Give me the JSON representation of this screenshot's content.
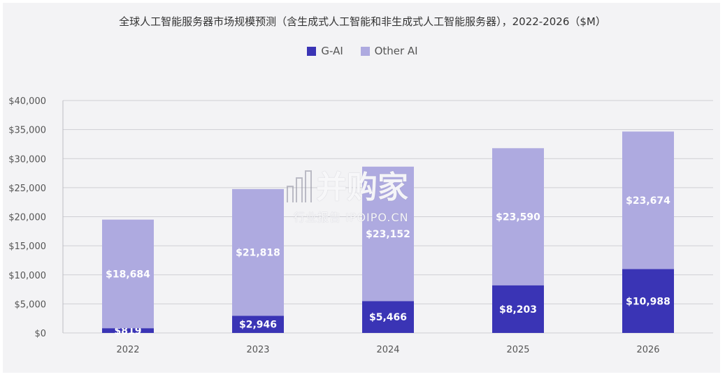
{
  "chart_data": {
    "type": "bar",
    "stacked": true,
    "title": "全球人工智能服务器市场规模预测（含生成式人工智能和非生成式人工智能服务器），2022-2026（$M）",
    "categories": [
      "2022",
      "2023",
      "2024",
      "2025",
      "2026"
    ],
    "series": [
      {
        "name": "G-AI",
        "color": "#3a34b5",
        "values": [
          819,
          2946,
          5466,
          8203,
          10988
        ],
        "labels": [
          "$819",
          "$2,946",
          "$5,466",
          "$8,203",
          "$10,988"
        ]
      },
      {
        "name": "Other AI",
        "color": "#aeaae0",
        "values": [
          18684,
          21818,
          23152,
          23590,
          23674
        ],
        "labels": [
          "$18,684",
          "$21,818",
          "$23,152",
          "$23,590",
          "$23,674"
        ]
      }
    ],
    "ylim": [
      0,
      40000
    ],
    "yticks": [
      0,
      5000,
      10000,
      15000,
      20000,
      25000,
      30000,
      35000,
      40000
    ],
    "ytick_labels": [
      "$0",
      "$5,000",
      "$10,000",
      "$15,000",
      "$20,000",
      "$25,000",
      "$30,000",
      "$35,000",
      "$40,000"
    ],
    "grid": true,
    "legend_position": "top-center"
  },
  "watermark": {
    "brand": "并购家",
    "sub": "行业报告 IPOIPO.CN"
  }
}
